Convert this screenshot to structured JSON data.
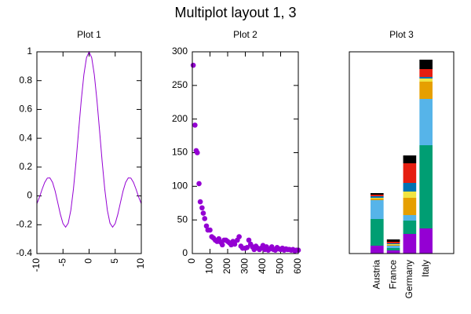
{
  "title": "Multiplot layout 1, 3",
  "chart_data": [
    {
      "type": "line",
      "title": "Plot 1",
      "color": "#9400d3",
      "x": [
        -10,
        -9.5,
        -9,
        -8.5,
        -8,
        -7.5,
        -7,
        -6.5,
        -6,
        -5.5,
        -5,
        -4.5,
        -4,
        -3.5,
        -3,
        -2.5,
        -2,
        -1.5,
        -1,
        -0.5,
        0,
        0.5,
        1,
        1.5,
        2,
        2.5,
        3,
        3.5,
        4,
        4.5,
        5,
        5.5,
        6,
        6.5,
        7,
        7.5,
        8,
        8.5,
        9,
        9.5,
        10
      ],
      "values": [
        -0.054,
        -0.008,
        0.046,
        0.094,
        0.124,
        0.125,
        0.094,
        0.033,
        -0.047,
        -0.128,
        -0.192,
        -0.217,
        -0.189,
        -0.1,
        0.047,
        0.239,
        0.455,
        0.665,
        0.841,
        0.959,
        1,
        0.959,
        0.841,
        0.665,
        0.455,
        0.239,
        0.047,
        -0.1,
        -0.189,
        -0.217,
        -0.192,
        -0.128,
        -0.047,
        0.033,
        0.094,
        0.125,
        0.124,
        0.094,
        0.046,
        -0.008,
        -0.054
      ],
      "xlim": [
        -10,
        10
      ],
      "xticks": [
        -10,
        -5,
        0,
        5,
        10
      ],
      "ylim": [
        -0.4,
        1
      ],
      "yticks": [
        -0.4,
        -0.2,
        0,
        0.2,
        0.4,
        0.6,
        0.8,
        1
      ]
    },
    {
      "type": "scatter",
      "title": "Plot 2",
      "color": "#9400d3",
      "x": [
        5,
        15,
        22,
        28,
        38,
        45,
        55,
        62,
        70,
        80,
        88,
        100,
        110,
        120,
        130,
        140,
        150,
        160,
        170,
        180,
        190,
        200,
        210,
        220,
        230,
        240,
        255,
        265,
        275,
        285,
        300,
        310,
        320,
        330,
        340,
        350,
        360,
        370,
        380,
        390,
        400,
        410,
        420,
        430,
        440,
        450,
        460,
        470,
        480,
        490,
        500,
        510,
        520,
        530,
        540,
        550,
        560,
        570,
        580,
        590,
        600
      ],
      "values": [
        280,
        191,
        153,
        150,
        104,
        77,
        68,
        60,
        52,
        41,
        35,
        35,
        25,
        23,
        20,
        18,
        22,
        17,
        13,
        20,
        20,
        18,
        16,
        13,
        18,
        14,
        20,
        25,
        11,
        8,
        8,
        9,
        20,
        14,
        10,
        6,
        11,
        8,
        6,
        8,
        12,
        6,
        10,
        5,
        7,
        10,
        6,
        5,
        9,
        7,
        6,
        8,
        5,
        7,
        6,
        6,
        5,
        6,
        4,
        5,
        5
      ],
      "xlim": [
        0,
        600
      ],
      "xticks": [
        0,
        100,
        200,
        300,
        400,
        500,
        600
      ],
      "ylim": [
        0,
        300
      ],
      "yticks": [
        0,
        50,
        100,
        150,
        200,
        250,
        300
      ]
    },
    {
      "type": "bar",
      "title": "Plot 3",
      "categories": [
        "Austria",
        "France",
        "Germany",
        "Italy"
      ],
      "ylim": [
        0,
        257
      ],
      "series": [
        {
          "color": "#9400d3",
          "values": [
            10,
            4,
            25,
            32
          ]
        },
        {
          "color": "#009e73",
          "values": [
            34,
            3,
            17,
            106
          ]
        },
        {
          "color": "#56b4e9",
          "values": [
            24,
            3,
            7,
            59
          ]
        },
        {
          "color": "#e69f00",
          "values": [
            2,
            1,
            22,
            22
          ]
        },
        {
          "color": "#f0e442",
          "values": [
            1,
            1,
            8,
            4
          ]
        },
        {
          "color": "#0072b2",
          "values": [
            2,
            1,
            11,
            2
          ]
        },
        {
          "color": "#e51e10",
          "values": [
            2,
            2,
            25,
            10
          ]
        },
        {
          "color": "#000000",
          "values": [
            2,
            3,
            10,
            12
          ]
        }
      ]
    }
  ]
}
